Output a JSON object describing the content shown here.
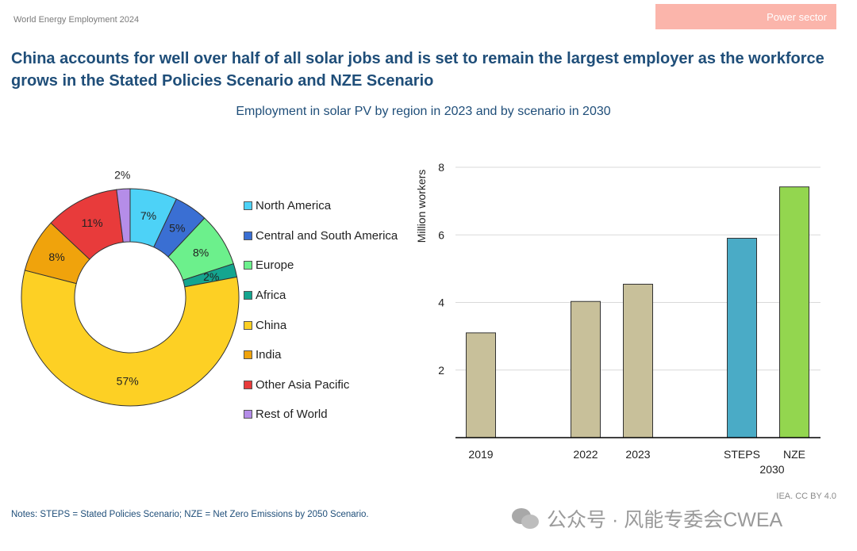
{
  "header": {
    "report_title": "World Energy Employment 2024",
    "sector_badge": "Power sector"
  },
  "headline": "China accounts for well over half of all solar jobs and is set to remain the largest employer as the workforce grows in the Stated Policies Scenario and NZE Scenario",
  "chart_data": [
    {
      "type": "pie",
      "variant": "donut",
      "title": "Employment in solar PV by region in 2023 and by scenario in 2030",
      "slices": [
        {
          "label": "North America",
          "value": 7,
          "display": "7%",
          "color": "#4dd2f7"
        },
        {
          "label": "Central and South America",
          "value": 5,
          "display": "5%",
          "color": "#3a6fd3"
        },
        {
          "label": "Europe",
          "value": 8,
          "display": "8%",
          "color": "#6cf08c"
        },
        {
          "label": "Africa",
          "value": 2,
          "display": "2%",
          "color": "#14a58f"
        },
        {
          "label": "China",
          "value": 57,
          "display": "57%",
          "color": "#fdd024"
        },
        {
          "label": "India",
          "value": 8,
          "display": "8%",
          "color": "#f0a30c"
        },
        {
          "label": "Other Asia Pacific",
          "value": 11,
          "display": "11%",
          "color": "#e83b3b"
        },
        {
          "label": "Rest of World",
          "value": 2,
          "display": "2%",
          "color": "#b58de8"
        }
      ],
      "legend": "right"
    },
    {
      "type": "bar",
      "categories": [
        "2019",
        "2022",
        "2023",
        "STEPS",
        "NZE"
      ],
      "values": [
        3.1,
        4.03,
        4.54,
        5.9,
        7.42
      ],
      "colors": [
        "#c8c09a",
        "#c8c09a",
        "#c8c09a",
        "#4aabc6",
        "#93d64f"
      ],
      "group_label": "2030",
      "ylabel": "Million workers",
      "ylim": [
        0,
        8
      ],
      "yticks": [
        2,
        4,
        6,
        8
      ],
      "grid": true
    }
  ],
  "notes": "Notes: STEPS = Stated Policies Scenario; NZE = Net Zero Emissions by 2050 Scenario.",
  "source": "IEA. CC BY 4.0",
  "watermark": {
    "icon": "wechat-icon",
    "text": "公众号 · 风能专委会CWEA"
  }
}
